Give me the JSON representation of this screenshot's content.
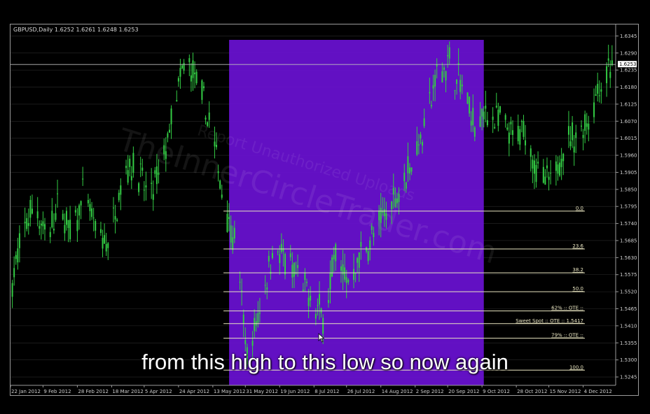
{
  "symbol_info": "GBPUSD,Daily  1.6252 1.6261 1.6248 1.6253",
  "subtitle": "from this high to this low so now again",
  "watermark": "TheInnerCircleTrader.com",
  "watermark2": "Report Unauthorized Uploads",
  "colors": {
    "background": "#000000",
    "candle": "#33cc44",
    "highlight": "#6a11d4",
    "fib": "#e8e4c0",
    "axis_text": "#cfcfcf",
    "grid": "#2a2a2a",
    "price_line": "#bdbdbd"
  },
  "chart_data": {
    "type": "candlestick",
    "title": "",
    "symbol": "GBPUSD",
    "timeframe": "Daily",
    "ohlc": {
      "open": 1.6252,
      "high": 1.6261,
      "low": 1.6248,
      "close": 1.6253
    },
    "current_price": "1.6253",
    "ylim": [
      1.5218,
      1.6382
    ],
    "xlim": [
      "2012-01-22",
      "2012-12-22"
    ],
    "y_ticks": [
      "1.6345",
      "1.6290",
      "1.6235",
      "1.6180",
      "1.6125",
      "1.6070",
      "1.6015",
      "1.5960",
      "1.5905",
      "1.5850",
      "1.5795",
      "1.5740",
      "1.5685",
      "1.5630",
      "1.5575",
      "1.5520",
      "1.5465",
      "1.5410",
      "1.5355",
      "1.5300",
      "1.5245"
    ],
    "x_ticks": [
      {
        "date": "2012-01-22",
        "label": "22 Jan 2012"
      },
      {
        "date": "2012-02-09",
        "label": "9 Feb 2012"
      },
      {
        "date": "2012-02-28",
        "label": "28 Feb 2012"
      },
      {
        "date": "2012-03-18",
        "label": "18 Mar 2012"
      },
      {
        "date": "2012-04-05",
        "label": "5 Apr 2012"
      },
      {
        "date": "2012-04-24",
        "label": "24 Apr 2012"
      },
      {
        "date": "2012-05-13",
        "label": "13 May 2012"
      },
      {
        "date": "2012-05-31",
        "label": "31 May 2012"
      },
      {
        "date": "2012-06-19",
        "label": "19 Jun 2012"
      },
      {
        "date": "2012-07-08",
        "label": "8 Jul 2012"
      },
      {
        "date": "2012-07-26",
        "label": "26 Jul 2012"
      },
      {
        "date": "2012-08-14",
        "label": "14 Aug 2012"
      },
      {
        "date": "2012-09-02",
        "label": "2 Sep 2012"
      },
      {
        "date": "2012-09-20",
        "label": "20 Sep 2012"
      },
      {
        "date": "2012-10-09",
        "label": "9 Oct 2012"
      },
      {
        "date": "2012-10-28",
        "label": "28 Oct 2012"
      },
      {
        "date": "2012-11-15",
        "label": "15 Nov 2012"
      },
      {
        "date": "2012-12-04",
        "label": "4 Dec 2012"
      }
    ],
    "highlight_range": [
      "2012-05-22",
      "2012-10-10"
    ],
    "fib_anchor_date": "2012-05-22",
    "fib_levels": [
      {
        "label": "0.0",
        "price": 1.578
      },
      {
        "label": "23.6",
        "price": 1.5658
      },
      {
        "label": "38.2",
        "price": 1.5581
      },
      {
        "label": "50.0",
        "price": 1.552
      },
      {
        "label": "62% :: OTE ::",
        "price": 1.5458
      },
      {
        "label": "Sweet Spot :: OTE ::  1.5417",
        "price": 1.5417
      },
      {
        "label": "79% :: OTE ::",
        "price": 1.537
      },
      {
        "label": "100.0",
        "price": 1.5267
      }
    ],
    "price_path": [
      {
        "date": "2012-01-22",
        "price": 1.552
      },
      {
        "date": "2012-01-28",
        "price": 1.569
      },
      {
        "date": "2012-02-04",
        "price": 1.581
      },
      {
        "date": "2012-02-11",
        "price": 1.569
      },
      {
        "date": "2012-02-18",
        "price": 1.58
      },
      {
        "date": "2012-02-25",
        "price": 1.57
      },
      {
        "date": "2012-03-03",
        "price": 1.585
      },
      {
        "date": "2012-03-10",
        "price": 1.569
      },
      {
        "date": "2012-03-17",
        "price": 1.568
      },
      {
        "date": "2012-03-24",
        "price": 1.59
      },
      {
        "date": "2012-03-31",
        "price": 1.594
      },
      {
        "date": "2012-04-07",
        "price": 1.582
      },
      {
        "date": "2012-04-14",
        "price": 1.59
      },
      {
        "date": "2012-04-21",
        "price": 1.61
      },
      {
        "date": "2012-04-28",
        "price": 1.627
      },
      {
        "date": "2012-05-05",
        "price": 1.618
      },
      {
        "date": "2012-05-12",
        "price": 1.605
      },
      {
        "date": "2012-05-19",
        "price": 1.582
      },
      {
        "date": "2012-05-26",
        "price": 1.566
      },
      {
        "date": "2012-06-01",
        "price": 1.53
      },
      {
        "date": "2012-06-08",
        "price": 1.546
      },
      {
        "date": "2012-06-15",
        "price": 1.566
      },
      {
        "date": "2012-06-22",
        "price": 1.562
      },
      {
        "date": "2012-06-29",
        "price": 1.556
      },
      {
        "date": "2012-07-06",
        "price": 1.55
      },
      {
        "date": "2012-07-13",
        "price": 1.544
      },
      {
        "date": "2012-07-20",
        "price": 1.564
      },
      {
        "date": "2012-07-27",
        "price": 1.555
      },
      {
        "date": "2012-08-03",
        "price": 1.564
      },
      {
        "date": "2012-08-10",
        "price": 1.57
      },
      {
        "date": "2012-08-17",
        "price": 1.578
      },
      {
        "date": "2012-08-24",
        "price": 1.585
      },
      {
        "date": "2012-08-31",
        "price": 1.594
      },
      {
        "date": "2012-09-07",
        "price": 1.605
      },
      {
        "date": "2012-09-14",
        "price": 1.622
      },
      {
        "date": "2012-09-21",
        "price": 1.626
      },
      {
        "date": "2012-09-28",
        "price": 1.618
      },
      {
        "date": "2012-10-05",
        "price": 1.605
      },
      {
        "date": "2012-10-12",
        "price": 1.61
      },
      {
        "date": "2012-10-19",
        "price": 1.607
      },
      {
        "date": "2012-10-26",
        "price": 1.601
      },
      {
        "date": "2012-11-02",
        "price": 1.604
      },
      {
        "date": "2012-11-09",
        "price": 1.59
      },
      {
        "date": "2012-11-16",
        "price": 1.586
      },
      {
        "date": "2012-11-23",
        "price": 1.599
      },
      {
        "date": "2012-11-30",
        "price": 1.602
      },
      {
        "date": "2012-12-07",
        "price": 1.608
      },
      {
        "date": "2012-12-14",
        "price": 1.62
      },
      {
        "date": "2012-12-20",
        "price": 1.6253
      }
    ]
  }
}
